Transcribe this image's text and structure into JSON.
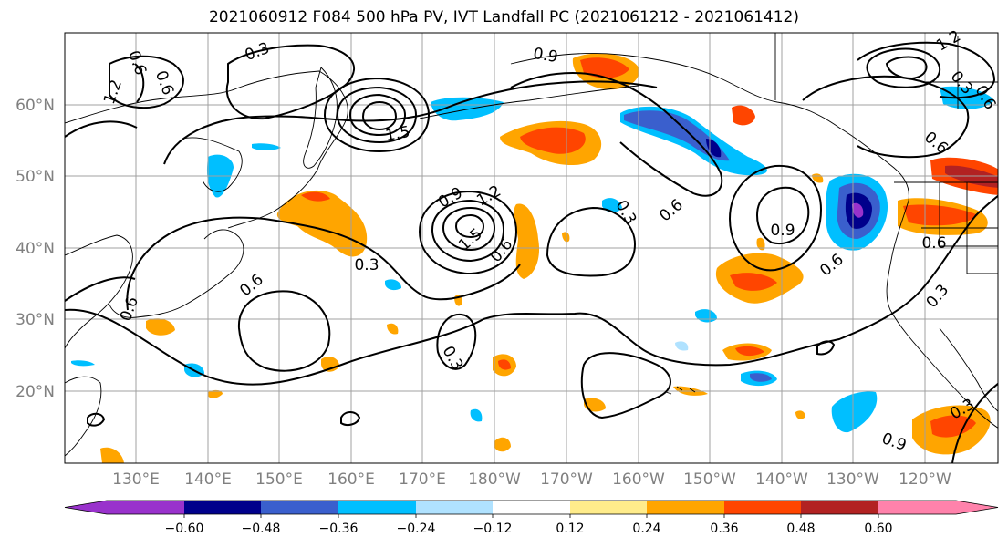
{
  "title": "2021060912 F084 500 hPa PV, IVT Landfall PC (2021061212 - 2021061412)",
  "lat_labels": [
    "60°N",
    "50°N",
    "40°N",
    "30°N",
    "20°N"
  ],
  "lon_labels": [
    "130°E",
    "140°E",
    "150°E",
    "160°E",
    "170°E",
    "180°W",
    "170°W",
    "160°W",
    "150°W",
    "140°W",
    "130°W",
    "120°W"
  ],
  "contour_labels": [
    "0.3",
    "0.9",
    "0.6",
    "1.2",
    "1.5",
    "0.9",
    "1.2",
    "1.5",
    "0.6",
    "0.3",
    "0.6",
    "0.3",
    "0.6",
    "0.9",
    "0.6",
    "0.3",
    "0.6",
    "0.6",
    "0.3",
    "0.9",
    "1.2",
    "0.6",
    "0.6",
    "0.3",
    "0.6",
    "0.3"
  ],
  "colorbar": {
    "ticks": [
      "−0.60",
      "−0.48",
      "−0.36",
      "−0.24",
      "−0.12",
      "0.12",
      "0.24",
      "0.36",
      "0.48",
      "0.60"
    ],
    "colors": [
      "#9932cc",
      "#00008b",
      "#3a5fcd",
      "#00bfff",
      "#b0e2ff",
      "#ffffff",
      "#ffec8b",
      "#ffa500",
      "#ff4500",
      "#b22222",
      "#ff82ab"
    ]
  },
  "palette": {
    "purple": "#9932cc",
    "navy": "#00008b",
    "royal": "#3a5fcd",
    "sky": "#00bfff",
    "pale_blue": "#b0e2ff",
    "pale_yellow": "#ffec8b",
    "orange": "#ffa500",
    "red_orange": "#ff4500",
    "firebrick": "#b22222",
    "pink": "#ff82ab"
  }
}
